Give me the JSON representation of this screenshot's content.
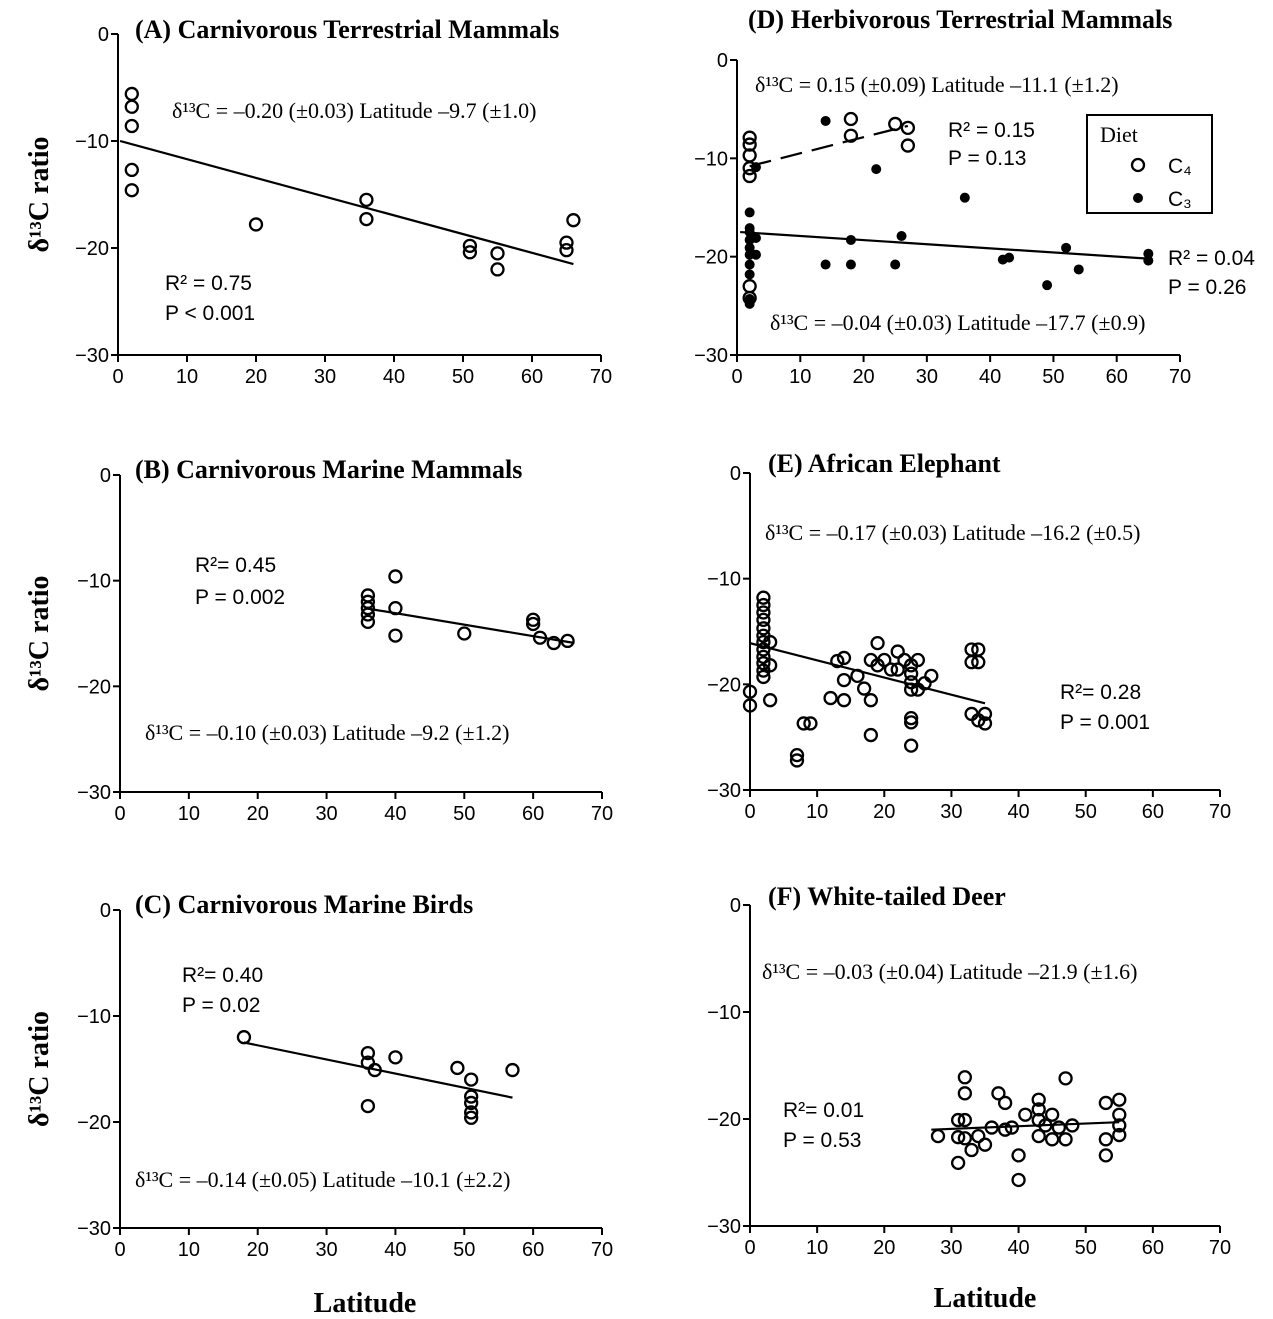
{
  "chart_data": [
    {
      "type": "scatter",
      "title": "(A) Carnivorous Terrestrial Mammals",
      "ylabel": "δ¹³C ratio",
      "xlim": [
        0,
        70
      ],
      "ylim": [
        -30,
        0
      ],
      "xticks": [
        0,
        10,
        20,
        30,
        40,
        50,
        60,
        70
      ],
      "yticks": [
        {
          "value": -30,
          "label": "−30"
        },
        {
          "value": -20,
          "label": "−20"
        },
        {
          "value": -10,
          "label": "−10"
        },
        0
      ],
      "series": [
        {
          "marker": "open",
          "color": "#000000",
          "x": [
            2,
            2,
            2,
            2,
            2,
            20,
            36,
            36,
            51,
            51,
            55,
            55,
            65,
            65,
            66
          ],
          "y": [
            -5.6,
            -6.8,
            -8.6,
            -12.7,
            -14.6,
            -17.8,
            -15.5,
            -17.3,
            -19.8,
            -20.4,
            -20.5,
            -22.0,
            -19.5,
            -20.2,
            -17.4
          ]
        }
      ],
      "fit_lines": [
        {
          "x": [
            0.3,
            66
          ],
          "y": [
            -10.0,
            -21.5
          ],
          "dash": false
        }
      ],
      "annotations": [
        "δ¹³C = –0.20 (±0.03) Latitude –9.7 (±1.0)",
        "R² = 0.75",
        "P < 0.001"
      ]
    },
    {
      "type": "scatter",
      "title": "(B) Carnivorous Marine Mammals",
      "ylabel": "δ¹³C ratio",
      "xlim": [
        0,
        70
      ],
      "ylim": [
        -30,
        0
      ],
      "xticks": [
        0,
        10,
        20,
        30,
        40,
        50,
        60,
        70
      ],
      "yticks": [
        {
          "value": -30,
          "label": "−30"
        },
        {
          "value": -20,
          "label": "−20"
        },
        {
          "value": -10,
          "label": "−10"
        },
        0
      ],
      "series": [
        {
          "marker": "open",
          "color": "#000000",
          "x": [
            36,
            36,
            36,
            36,
            36,
            40,
            40,
            40,
            50,
            60,
            60,
            61,
            63,
            65
          ],
          "y": [
            -11.4,
            -12.0,
            -12.6,
            -13.2,
            -13.9,
            -9.6,
            -12.6,
            -15.2,
            -15.0,
            -13.7,
            -14.1,
            -15.4,
            -15.9,
            -15.7
          ]
        }
      ],
      "fit_lines": [
        {
          "x": [
            35.6,
            66
          ],
          "y": [
            -12.6,
            -15.9
          ],
          "dash": false
        }
      ],
      "annotations": [
        "R²= 0.45",
        "P = 0.002",
        "δ¹³C = –0.10 (±0.03) Latitude –9.2 (±1.2)"
      ]
    },
    {
      "type": "scatter",
      "title": "(C) Carnivorous Marine Birds",
      "ylabel": "δ¹³C ratio",
      "xlabel": "Latitude",
      "xlim": [
        0,
        70
      ],
      "ylim": [
        -30,
        0
      ],
      "xticks": [
        0,
        10,
        20,
        30,
        40,
        50,
        60,
        70
      ],
      "yticks": [
        {
          "value": -30,
          "label": "−30"
        },
        {
          "value": -20,
          "label": "−20"
        },
        {
          "value": -10,
          "label": "−10"
        },
        0
      ],
      "series": [
        {
          "marker": "open",
          "color": "#000000",
          "x": [
            18,
            36,
            36,
            37,
            36,
            40,
            49,
            51,
            51,
            51,
            51,
            51,
            57
          ],
          "y": [
            -12.0,
            -13.5,
            -14.4,
            -15.1,
            -18.5,
            -13.9,
            -14.9,
            -16.0,
            -17.6,
            -18.2,
            -19.1,
            -19.6,
            -15.1
          ]
        }
      ],
      "fit_lines": [
        {
          "x": [
            18,
            57
          ],
          "y": [
            -12.5,
            -17.7
          ],
          "dash": false
        }
      ],
      "annotations": [
        "R²= 0.40",
        "P = 0.02",
        "δ¹³C = –0.14 (±0.05) Latitude –10.1 (±2.2)"
      ]
    },
    {
      "type": "scatter",
      "title": "(D) Herbivorous Terrestrial Mammals",
      "xlim": [
        0,
        70
      ],
      "ylim": [
        -30,
        0
      ],
      "xticks": [
        0,
        10,
        20,
        30,
        40,
        50,
        60,
        70
      ],
      "yticks": [
        {
          "value": -30,
          "label": "−30"
        },
        {
          "value": -20,
          "label": "−20"
        },
        {
          "value": -10,
          "label": "−10"
        },
        0
      ],
      "legend_title": "Diet",
      "series": [
        {
          "name": "C₄",
          "marker": "open",
          "color": "#000000",
          "x": [
            2,
            2,
            2,
            2,
            2,
            2,
            2,
            18,
            18,
            25,
            27,
            27
          ],
          "y": [
            -7.9,
            -8.6,
            -9.7,
            -11.0,
            -11.8,
            -23.0,
            -24.2,
            -6.0,
            -7.7,
            -6.5,
            -6.9,
            -8.7
          ]
        },
        {
          "name": "C₃",
          "marker": "filled",
          "color": "#000000",
          "x": [
            2,
            2,
            2,
            2,
            2,
            2,
            2,
            2,
            2,
            2,
            3,
            3,
            3,
            14,
            22,
            14,
            18,
            18,
            26,
            25,
            36,
            42,
            43,
            52,
            54,
            49,
            65,
            65
          ],
          "y": [
            -15.5,
            -17.1,
            -17.5,
            -18.3,
            -19.1,
            -19.8,
            -20.8,
            -21.8,
            -24.3,
            -24.8,
            -18.1,
            -19.8,
            -10.9,
            -6.2,
            -11.1,
            -20.8,
            -20.8,
            -18.3,
            -17.9,
            -20.8,
            -14.0,
            -20.3,
            -20.1,
            -19.1,
            -21.3,
            -22.9,
            -19.7,
            -20.4
          ]
        }
      ],
      "fit_lines": [
        {
          "x": [
            2,
            27
          ],
          "y": [
            -10.8,
            -6.7
          ],
          "dash": true
        },
        {
          "x": [
            0.5,
            65
          ],
          "y": [
            -17.5,
            -20.2
          ],
          "dash": false
        }
      ],
      "annotations": [
        "δ¹³C = 0.15 (±0.09) Latitude –11.1 (±1.2)",
        "R² = 0.15",
        "P = 0.13",
        "R² = 0.04",
        "P = 0.26",
        "δ¹³C = –0.04 (±0.03) Latitude –17.7 (±0.9)"
      ]
    },
    {
      "type": "scatter",
      "title": "(E) African Elephant",
      "xlim": [
        0,
        70
      ],
      "ylim": [
        -30,
        0
      ],
      "xticks": [
        0,
        10,
        20,
        30,
        40,
        50,
        60,
        70
      ],
      "yticks": [
        {
          "value": -30,
          "label": "−30"
        },
        {
          "value": -20,
          "label": "−20"
        },
        {
          "value": -10,
          "label": "−10"
        },
        0
      ],
      "series": [
        {
          "marker": "open",
          "color": "#000000",
          "x": [
            0,
            0,
            2,
            2,
            2,
            2,
            2,
            2,
            2,
            2,
            2,
            2,
            2,
            2,
            3,
            3,
            3,
            7,
            7,
            8,
            9,
            12,
            13,
            14,
            14,
            14,
            16,
            17,
            18,
            18,
            18,
            19,
            19,
            20,
            21,
            22,
            22,
            23,
            24,
            24,
            24,
            24,
            24,
            24,
            24,
            25,
            25,
            26,
            27,
            33,
            33,
            33,
            34,
            34,
            34,
            35,
            35
          ],
          "y": [
            -20.7,
            -22.0,
            -11.8,
            -12.5,
            -13.2,
            -13.9,
            -14.7,
            -15.4,
            -16.0,
            -16.7,
            -17.4,
            -18.0,
            -18.7,
            -19.3,
            -16.0,
            -18.2,
            -21.5,
            -26.7,
            -27.2,
            -23.7,
            -23.7,
            -21.3,
            -17.8,
            -17.5,
            -19.6,
            -21.5,
            -19.2,
            -20.4,
            -21.5,
            -24.8,
            -17.7,
            -16.1,
            -18.2,
            -17.7,
            -18.6,
            -16.9,
            -18.6,
            -17.7,
            -18.2,
            -19.0,
            -19.8,
            -20.5,
            -23.2,
            -23.6,
            -25.8,
            -17.7,
            -20.5,
            -19.9,
            -19.2,
            -16.7,
            -17.9,
            -22.8,
            -16.7,
            -17.9,
            -23.4,
            -22.8,
            -23.7
          ]
        }
      ],
      "fit_lines": [
        {
          "x": [
            0,
            35
          ],
          "y": [
            -16.1,
            -21.8
          ],
          "dash": false
        }
      ],
      "annotations": [
        "δ¹³C = –0.17 (±0.03) Latitude –16.2 (±0.5)",
        "R²= 0.28",
        "P = 0.001"
      ]
    },
    {
      "type": "scatter",
      "title": "(F) White-tailed Deer",
      "xlabel": "Latitude",
      "xlim": [
        0,
        70
      ],
      "ylim": [
        -30,
        0
      ],
      "xticks": [
        0,
        10,
        20,
        30,
        40,
        50,
        60,
        70
      ],
      "yticks": [
        {
          "value": -30,
          "label": "−30"
        },
        {
          "value": -20,
          "label": "−20"
        },
        {
          "value": -10,
          "label": "−10"
        },
        0
      ],
      "series": [
        {
          "marker": "open",
          "color": "#000000",
          "x": [
            28,
            31,
            31,
            31,
            32,
            32,
            32,
            32,
            33,
            34,
            35,
            36,
            37,
            38,
            38,
            40,
            40,
            39,
            41,
            43,
            43,
            43,
            43,
            44,
            45,
            45,
            46,
            47,
            47,
            48,
            53,
            53,
            53,
            55,
            55,
            55,
            55
          ],
          "y": [
            -21.6,
            -20.1,
            -21.7,
            -24.1,
            -16.1,
            -17.6,
            -20.1,
            -21.8,
            -22.9,
            -21.6,
            -22.4,
            -20.8,
            -17.6,
            -18.5,
            -21.0,
            -23.4,
            -25.7,
            -20.8,
            -19.6,
            -18.2,
            -19.1,
            -20.1,
            -21.6,
            -20.6,
            -19.6,
            -21.9,
            -20.8,
            -16.2,
            -21.9,
            -20.6,
            -18.5,
            -21.9,
            -23.4,
            -18.2,
            -19.6,
            -20.6,
            -21.5
          ]
        }
      ],
      "fit_lines": [
        {
          "x": [
            27,
            55
          ],
          "y": [
            -21.0,
            -20.3
          ],
          "dash": false
        }
      ],
      "annotations": [
        "δ¹³C = –0.03 (±0.04) Latitude –21.9 (±1.6)",
        "R²= 0.01",
        "P = 0.53"
      ]
    }
  ]
}
